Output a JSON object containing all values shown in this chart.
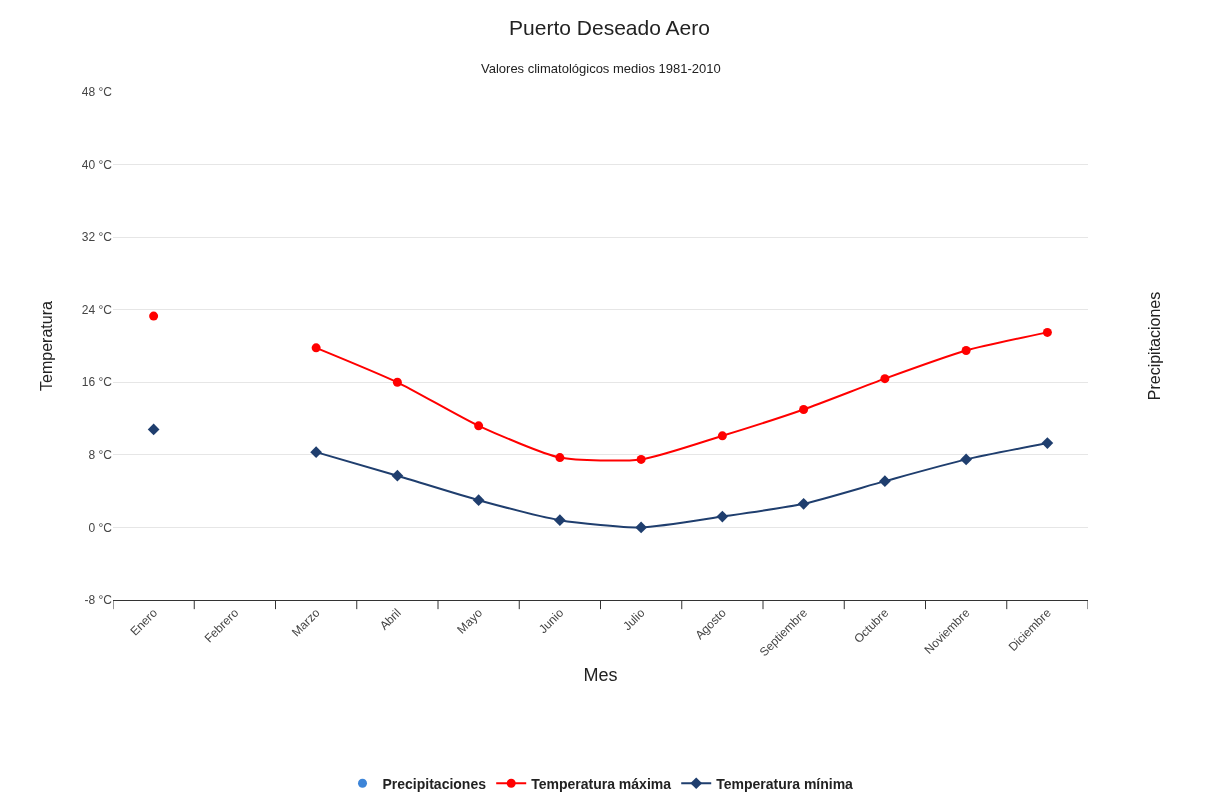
{
  "chart_data": {
    "type": "line",
    "title": "Puerto Deseado Aero",
    "subtitle": "Valores climatológicos medios 1981-2010",
    "xlabel": "Mes",
    "ylabel": "Temperatura",
    "y2label": "Precipitaciones",
    "categories": [
      "Enero",
      "Febrero",
      "Marzo",
      "Abril",
      "Mayo",
      "Junio",
      "Julio",
      "Agosto",
      "Septiembre",
      "Octubre",
      "Noviembre",
      "Diciembre"
    ],
    "series": [
      {
        "name": "Precipitaciones",
        "type": "scatter",
        "axis": "y2",
        "color": "#3d85d8",
        "marker": "circle",
        "values": [
          null,
          null,
          null,
          null,
          null,
          null,
          null,
          null,
          null,
          null,
          null,
          null
        ]
      },
      {
        "name": "Temperatura máxima",
        "color": "#ff0000",
        "marker": "circle",
        "values": [
          23.3,
          null,
          19.8,
          16.0,
          11.2,
          7.7,
          7.5,
          10.1,
          13.0,
          16.4,
          19.5,
          21.5
        ]
      },
      {
        "name": "Temperatura mínima",
        "color": "#1f3e6e",
        "marker": "diamond",
        "values": [
          10.8,
          null,
          8.3,
          5.7,
          3.0,
          0.8,
          0.0,
          1.2,
          2.6,
          5.1,
          7.5,
          9.3
        ]
      }
    ],
    "ylim": [
      -8,
      48
    ],
    "yticks": [
      {
        "value": -8,
        "label": "-8 °C"
      },
      {
        "value": 0,
        "label": "0 °C"
      },
      {
        "value": 8,
        "label": "8 °C"
      },
      {
        "value": 16,
        "label": "16 °C"
      },
      {
        "value": 24,
        "label": "24 °C"
      },
      {
        "value": 32,
        "label": "32 °C"
      },
      {
        "value": 40,
        "label": "40 °C"
      },
      {
        "value": 48,
        "label": "48 °C"
      }
    ],
    "grid": "y",
    "legend": "bottom",
    "line_style": "solid"
  }
}
